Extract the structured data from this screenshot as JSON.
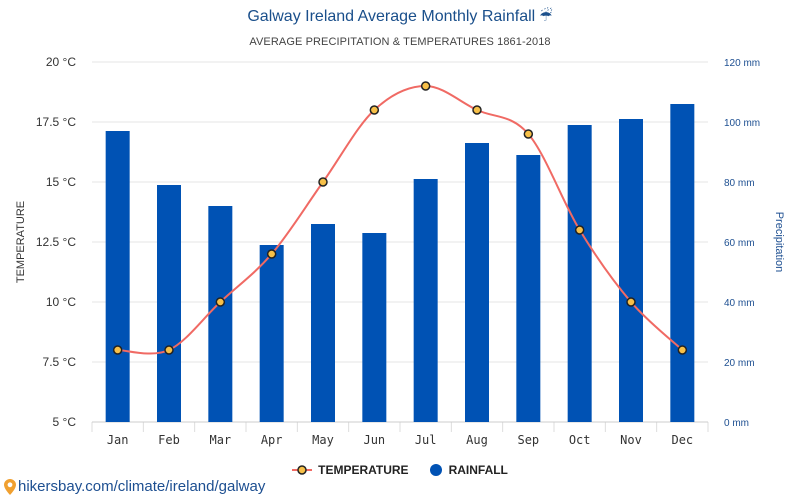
{
  "header": {
    "title": "Galway Ireland Average Monthly Rainfall",
    "title_icon": "umbrella-icon",
    "subtitle": "AVERAGE PRECIPITATION & TEMPERATURES 1861-2018"
  },
  "footer": {
    "link_text": "hikersbay.com/climate/ireland/galway",
    "icon": "map-pin-icon"
  },
  "colors": {
    "bar": "#0052b4",
    "line": "#f06a64",
    "marker_fill": "#f7c048",
    "marker_stroke": "#222222",
    "axis_text": "#333333",
    "right_axis_text": "#1d4f91",
    "grid": "#e6e6e6"
  },
  "chart_data": {
    "type": "bar+line",
    "categories": [
      "Jan",
      "Feb",
      "Mar",
      "Apr",
      "May",
      "Jun",
      "Jul",
      "Aug",
      "Sep",
      "Oct",
      "Nov",
      "Dec"
    ],
    "series": [
      {
        "name": "RAINFALL",
        "type": "bar",
        "axis": "right",
        "unit": "mm",
        "values": [
          97,
          79,
          72,
          59,
          66,
          63,
          81,
          93,
          89,
          99,
          101,
          106
        ]
      },
      {
        "name": "TEMPERATURE",
        "type": "line",
        "axis": "left",
        "unit": "°C",
        "values": [
          8,
          8,
          10,
          12,
          15,
          18,
          19,
          18,
          17,
          13,
          10,
          8
        ]
      }
    ],
    "left_axis": {
      "label": "TEMPERATURE",
      "range": [
        5,
        20
      ],
      "ticks": [
        5,
        7.5,
        10,
        12.5,
        15,
        17.5,
        20
      ],
      "tick_labels": [
        "5 °C",
        "7.5 °C",
        "10 °C",
        "12.5 °C",
        "15 °C",
        "17.5 °C",
        "20 °C"
      ]
    },
    "right_axis": {
      "label": "Precipitation",
      "range": [
        0,
        120
      ],
      "ticks": [
        0,
        20,
        40,
        60,
        80,
        100,
        120
      ],
      "tick_labels": [
        "0 mm",
        "20 mm",
        "40 mm",
        "60 mm",
        "80 mm",
        "100 mm",
        "120 mm"
      ]
    },
    "grid": true,
    "legend": "bottom-center"
  }
}
